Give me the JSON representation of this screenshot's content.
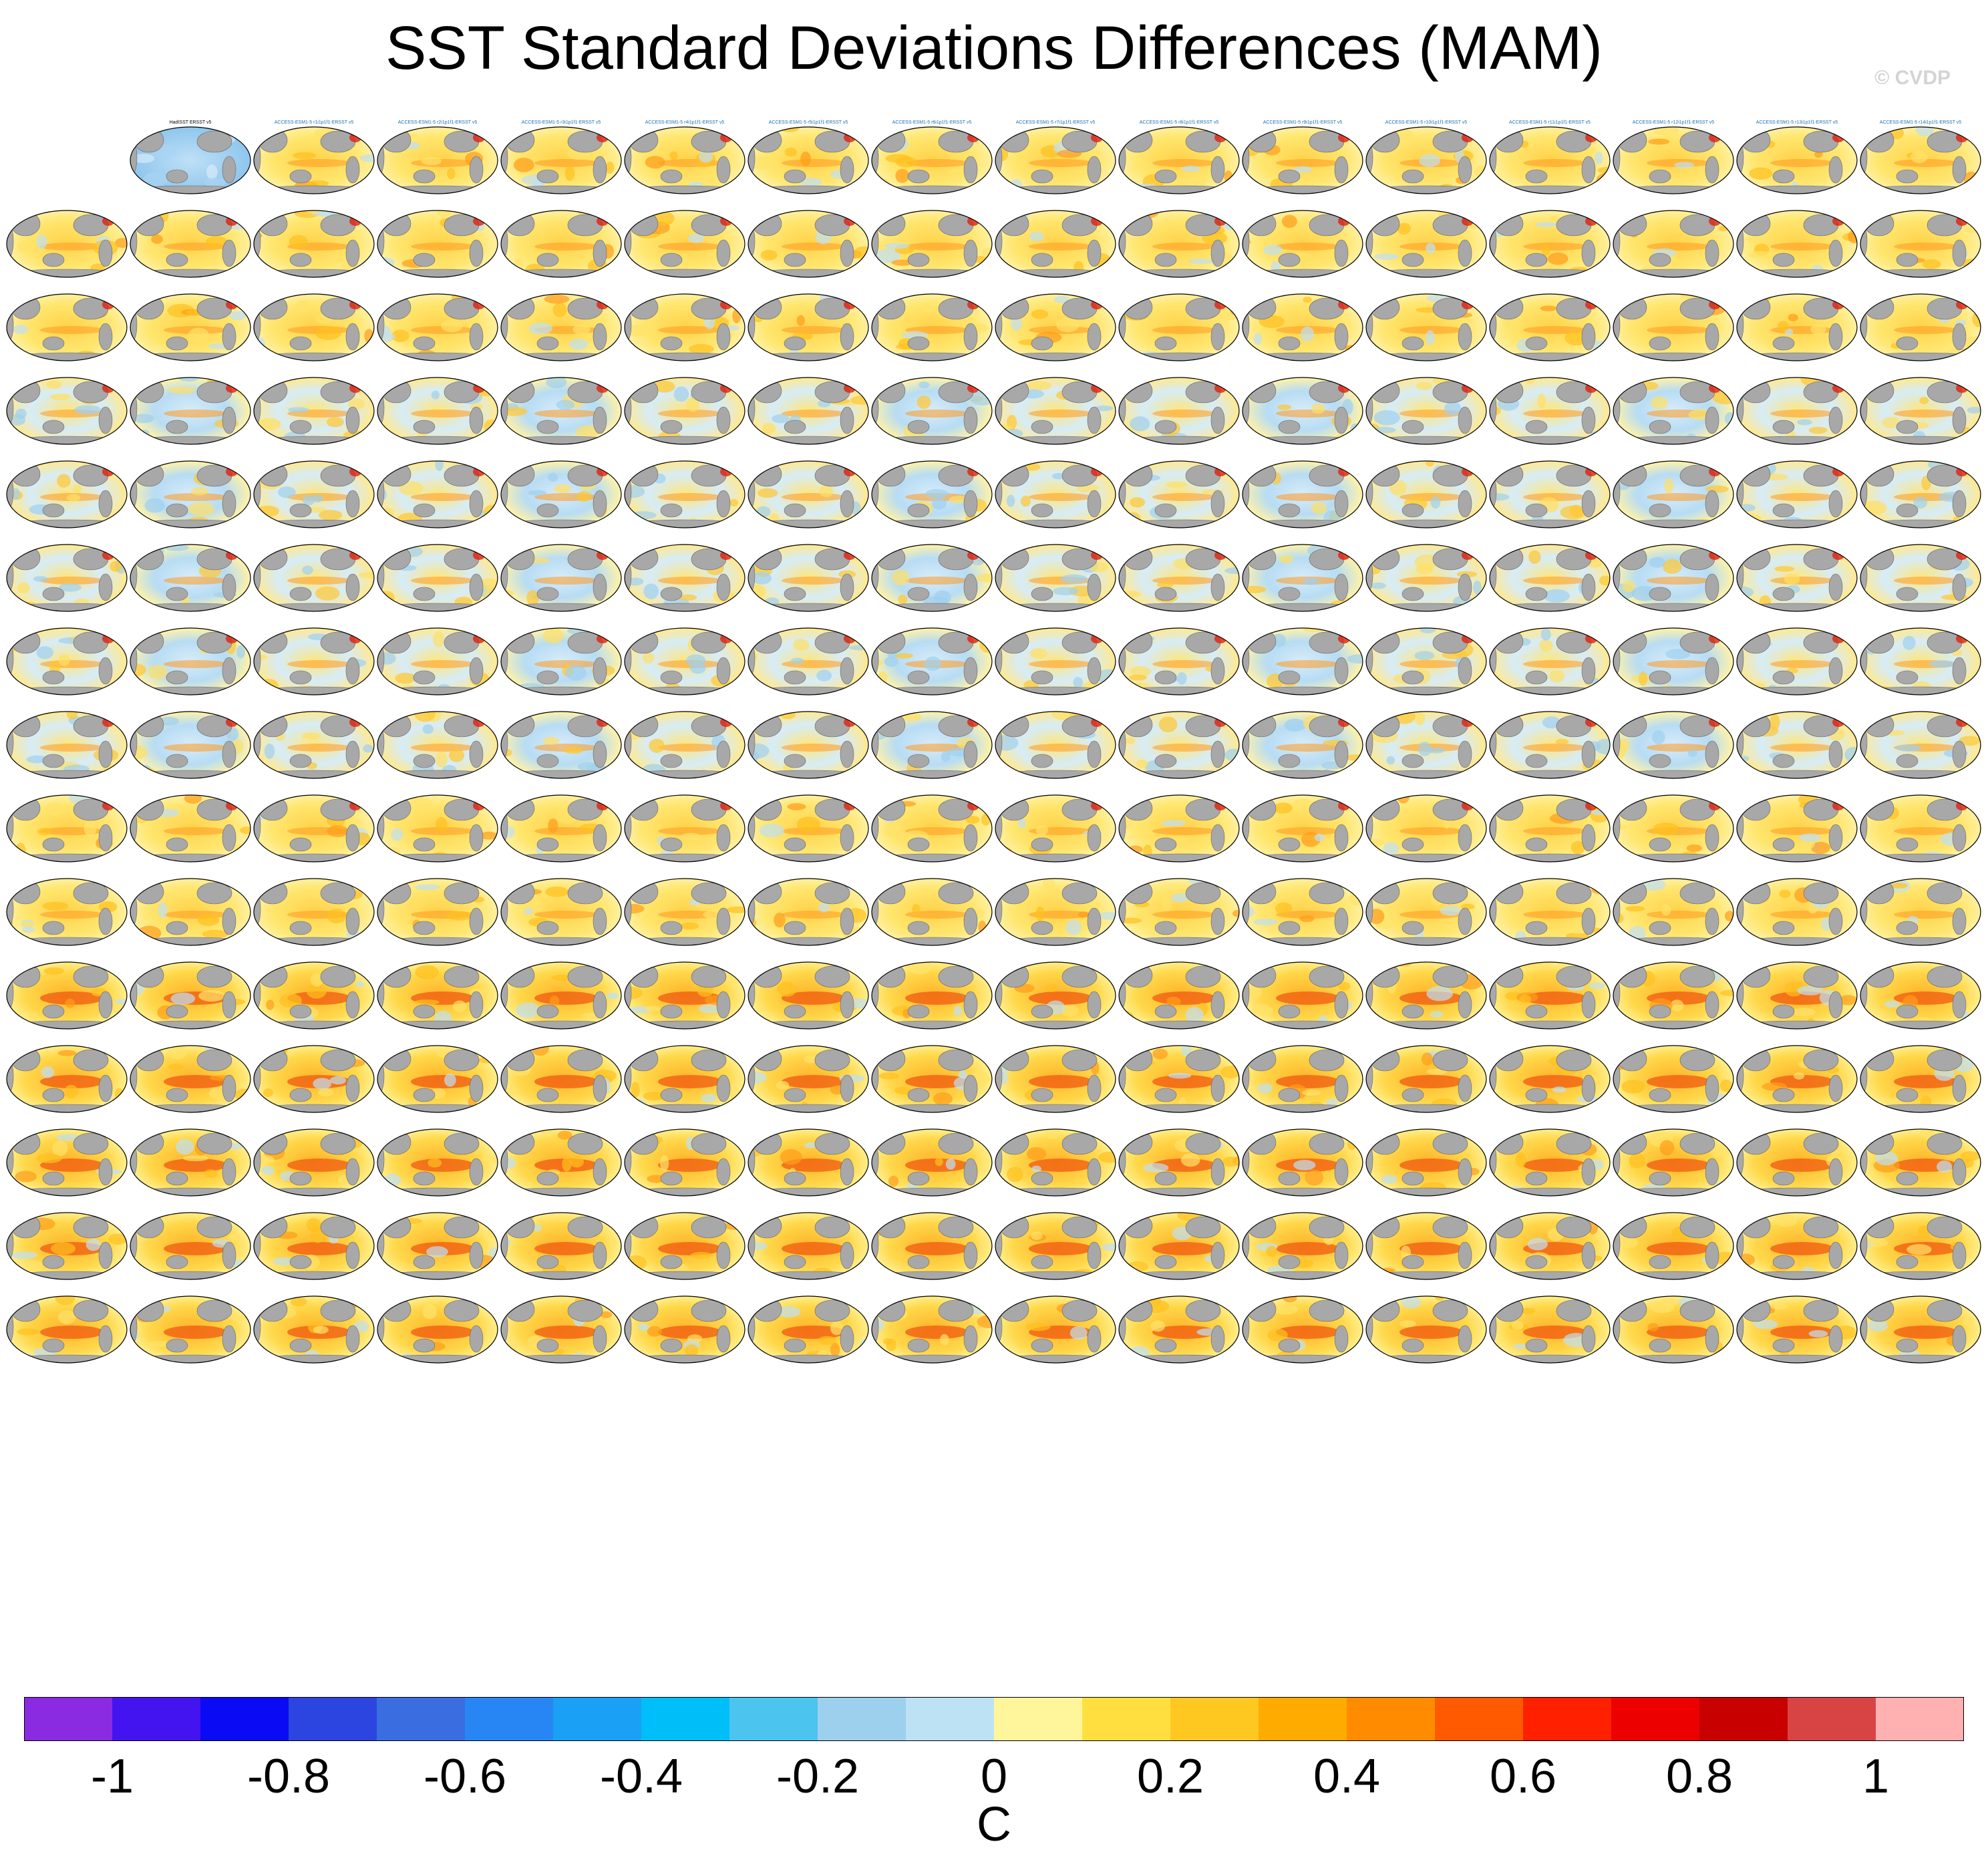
{
  "title": "SST Standard Deviations Differences (MAM)",
  "watermark": "© CVDP",
  "chart_data": {
    "type": "heatmap",
    "title": "SST Standard Deviations Differences (MAM)",
    "description_panels": "grid of global map panels, 16 columns x 15 rows; first row begins with observational panel",
    "rows": 15,
    "cols": 16,
    "panel_labels": [
      "HadISST ERSST v5",
      "ACCESS-ESM1-5 r1i1p1f1-ERSST v5",
      "ACCESS-ESM1-5 r2i1p1f1-ERSST v5",
      "ACCESS-ESM1-5 r3i1p1f1-ERSST v5",
      "ACCESS-ESM1-5 r4i1p1f1-ERSST v5",
      "ACCESS-ESM1-5 r5i1p1f1-ERSST v5",
      "ACCESS-ESM1-5 r6i1p1f1-ERSST v5",
      "ACCESS-ESM1-5 r7i1p1f1-ERSST v5",
      "ACCESS-ESM1-5 r8i1p1f1-ERSST v5",
      "ACCESS-ESM1-5 r9i1p1f1-ERSST v5",
      "ACCESS-ESM1-5 r10i1p1f1-ERSST v5",
      "ACCESS-ESM1-5 r11i1p1f1-ERSST v5",
      "ACCESS-ESM1-5 r12i1p1f1-ERSST v5",
      "ACCESS-ESM1-5 r13i1p1f1-ERSST v5",
      "ACCESS-ESM1-5 r14i1p1f1-ERSST v5"
    ],
    "colorbar": {
      "colors": [
        "#8a2be2",
        "#4414f0",
        "#0a0af5",
        "#2c45e0",
        "#3a6ee0",
        "#2886f4",
        "#1aa0f4",
        "#00bff8",
        "#4cc4f0",
        "#9dd0ec",
        "#bce2f4",
        "#fff59a",
        "#ffdf40",
        "#ffc820",
        "#ffab00",
        "#ff8c00",
        "#ff5a00",
        "#ff2000",
        "#ec0000",
        "#c80000",
        "#d84444",
        "#ffb0b0"
      ],
      "tick_labels": [
        "-1",
        "-0.8",
        "-0.6",
        "-0.4",
        "-0.2",
        "0",
        "0.2",
        "0.4",
        "0.6",
        "0.8",
        "1"
      ],
      "range": [
        -1.1,
        1.1
      ],
      "unit": "C"
    }
  }
}
